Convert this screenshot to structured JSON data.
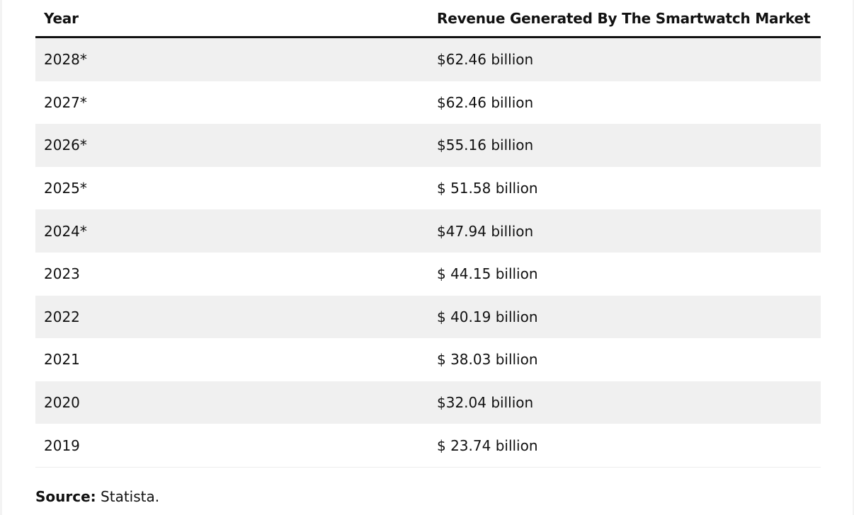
{
  "table": {
    "headers": [
      "Year",
      "Revenue Generated By The Smartwatch Market"
    ],
    "rows": [
      {
        "year": "2028*",
        "revenue": "$62.46 billion"
      },
      {
        "year": "2027*",
        "revenue": "$62.46 billion"
      },
      {
        "year": "2026*",
        "revenue": "$55.16 billion"
      },
      {
        "year": "2025*",
        "revenue": "$ 51.58 billion"
      },
      {
        "year": "2024*",
        "revenue": "$47.94 billion"
      },
      {
        "year": "2023",
        "revenue": "$ 44.15 billion"
      },
      {
        "year": "2022",
        "revenue": "$ 40.19 billion"
      },
      {
        "year": "2021",
        "revenue": "$ 38.03 billion"
      },
      {
        "year": "2020",
        "revenue": "$32.04 billion"
      },
      {
        "year": "2019",
        "revenue": "$ 23.74 billion"
      }
    ]
  },
  "source": {
    "label": "Source:",
    "text": " Statista."
  },
  "colors": {
    "row_shade": "#f0f0f0",
    "header_rule": "#111111",
    "text": "#111111"
  }
}
